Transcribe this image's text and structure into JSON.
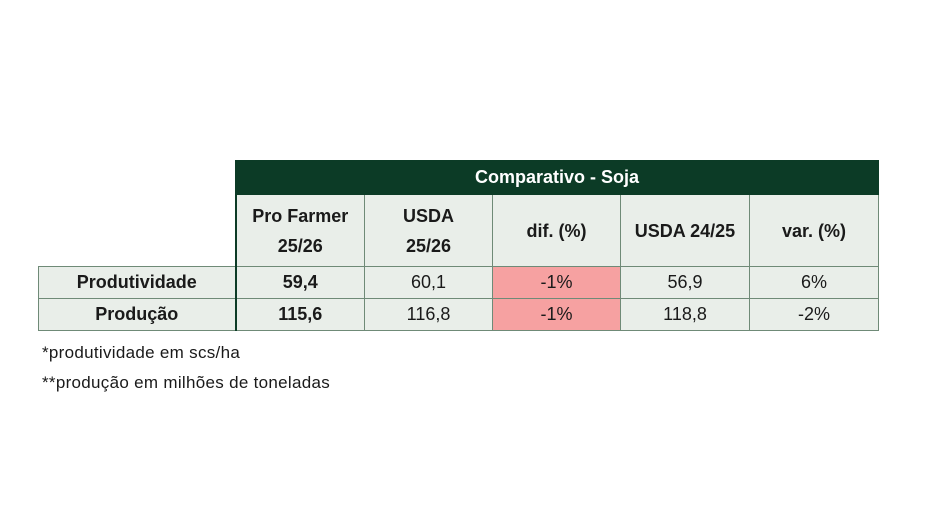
{
  "table": {
    "title": "Comparativo - Soja",
    "headers": [
      {
        "line1": "Pro Farmer",
        "line2": "25/26"
      },
      {
        "line1": "USDA",
        "line2": "25/26"
      },
      {
        "line1": "dif. (%)",
        "line2": ""
      },
      {
        "line1": "USDA 24/25",
        "line2": ""
      },
      {
        "line1": "var. (%)",
        "line2": ""
      }
    ],
    "rows": [
      {
        "label": "Produtividade",
        "cells": [
          "59,4",
          "60,1",
          "-1%",
          "56,9",
          "6%"
        ]
      },
      {
        "label": "Produção",
        "cells": [
          "115,6",
          "116,8",
          "-1%",
          "118,8",
          "-2%"
        ]
      }
    ]
  },
  "notes": [
    "*produtividade em scs/ha",
    "**produção em milhões de toneladas"
  ],
  "colors": {
    "header_bg": "#0c3b26",
    "cell_bg": "#e9eee9",
    "highlight_bg": "#f6a1a1"
  }
}
